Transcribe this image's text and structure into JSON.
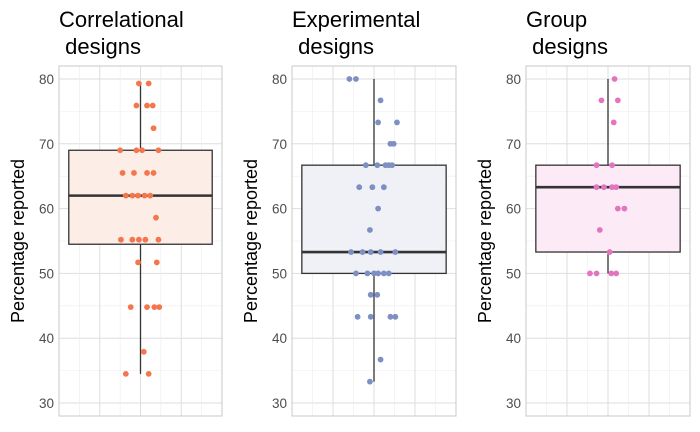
{
  "chart_data": [
    {
      "type": "boxplot",
      "title_lines": [
        "Correlational",
        " designs"
      ],
      "ylabel": "Percentage reported",
      "ylim": [
        28,
        82
      ],
      "yticks": [
        30,
        40,
        50,
        60,
        70,
        80
      ],
      "grid": true,
      "box": {
        "min": 34.5,
        "q1": 54.5,
        "median": 62,
        "q3": 69,
        "max": 79.3
      },
      "fill_color": "#fdede7",
      "point_color": "#f4764d",
      "points": [
        [
          -0.02,
          79.3
        ],
        [
          0.1,
          79.3
        ],
        [
          -0.05,
          75.9
        ],
        [
          0.08,
          75.9
        ],
        [
          0.15,
          75.9
        ],
        [
          0.16,
          72.4
        ],
        [
          -0.25,
          69
        ],
        [
          -0.05,
          69
        ],
        [
          0.02,
          69
        ],
        [
          0.22,
          69
        ],
        [
          -0.22,
          65.5
        ],
        [
          -0.08,
          65.5
        ],
        [
          0.08,
          65.5
        ],
        [
          0.16,
          65.5
        ],
        [
          -0.18,
          62
        ],
        [
          -0.1,
          62
        ],
        [
          -0.03,
          62
        ],
        [
          0.05,
          62
        ],
        [
          0.12,
          62
        ],
        [
          0.19,
          58.6
        ],
        [
          -0.24,
          55.2
        ],
        [
          -0.1,
          55.2
        ],
        [
          -0.02,
          55.2
        ],
        [
          0.06,
          55.2
        ],
        [
          0.22,
          55.2
        ],
        [
          -0.03,
          51.7
        ],
        [
          0.2,
          51.7
        ],
        [
          -0.12,
          44.8
        ],
        [
          0.08,
          44.8
        ],
        [
          0.17,
          44.8
        ],
        [
          0.23,
          44.8
        ],
        [
          0.04,
          37.9
        ],
        [
          -0.18,
          34.5
        ],
        [
          0.1,
          34.5
        ]
      ]
    },
    {
      "type": "boxplot",
      "title_lines": [
        "Experimental",
        " designs"
      ],
      "ylabel": "Percentage reported",
      "ylim": [
        28,
        82
      ],
      "yticks": [
        30,
        40,
        50,
        60,
        70,
        80
      ],
      "grid": true,
      "box": {
        "min": 33.3,
        "q1": 50,
        "median": 53.3,
        "q3": 66.7,
        "max": 80
      },
      "fill_color": "#eff1f7",
      "point_color": "#7d8fc3",
      "points": [
        [
          -0.3,
          80
        ],
        [
          -0.22,
          80
        ],
        [
          0.08,
          76.7
        ],
        [
          0.05,
          73.3
        ],
        [
          0.28,
          73.3
        ],
        [
          0.2,
          70
        ],
        [
          0.24,
          70
        ],
        [
          -0.1,
          66.7
        ],
        [
          0.04,
          66.7
        ],
        [
          0.14,
          66.7
        ],
        [
          0.18,
          66.7
        ],
        [
          0.22,
          66.7
        ],
        [
          -0.18,
          63.3
        ],
        [
          -0.02,
          63.3
        ],
        [
          0.12,
          63.3
        ],
        [
          0.05,
          60
        ],
        [
          -0.05,
          56.7
        ],
        [
          -0.28,
          53.3
        ],
        [
          -0.14,
          53.3
        ],
        [
          -0.04,
          53.3
        ],
        [
          0.08,
          53.3
        ],
        [
          0.26,
          53.3
        ],
        [
          -0.22,
          50
        ],
        [
          -0.08,
          50
        ],
        [
          0.0,
          50
        ],
        [
          0.05,
          50
        ],
        [
          0.12,
          50
        ],
        [
          0.18,
          50
        ],
        [
          -0.04,
          46.7
        ],
        [
          0.04,
          46.7
        ],
        [
          -0.2,
          43.3
        ],
        [
          -0.04,
          43.3
        ],
        [
          0.2,
          43.3
        ],
        [
          0.26,
          43.3
        ],
        [
          0.08,
          36.7
        ],
        [
          -0.05,
          33.3
        ]
      ]
    },
    {
      "type": "boxplot",
      "title_lines": [
        "Group",
        " designs"
      ],
      "ylabel": "Percentage reported",
      "ylim": [
        28,
        82
      ],
      "yticks": [
        30,
        40,
        50,
        60,
        70,
        80
      ],
      "grid": true,
      "box": {
        "min": 50,
        "q1": 53.3,
        "median": 63.3,
        "q3": 66.7,
        "max": 80
      },
      "fill_color": "#fcebf6",
      "point_color": "#e374c0",
      "points": [
        [
          0.08,
          80
        ],
        [
          -0.08,
          76.7
        ],
        [
          0.12,
          76.7
        ],
        [
          0.07,
          73.3
        ],
        [
          -0.14,
          66.7
        ],
        [
          0.05,
          66.7
        ],
        [
          -0.14,
          63.3
        ],
        [
          -0.05,
          63.3
        ],
        [
          0.05,
          63.3
        ],
        [
          0.1,
          63.3
        ],
        [
          0.12,
          60
        ],
        [
          0.2,
          60
        ],
        [
          -0.1,
          56.7
        ],
        [
          0.02,
          53.3
        ],
        [
          -0.22,
          50
        ],
        [
          -0.14,
          50
        ],
        [
          0.04,
          50
        ],
        [
          0.1,
          50
        ]
      ]
    }
  ]
}
